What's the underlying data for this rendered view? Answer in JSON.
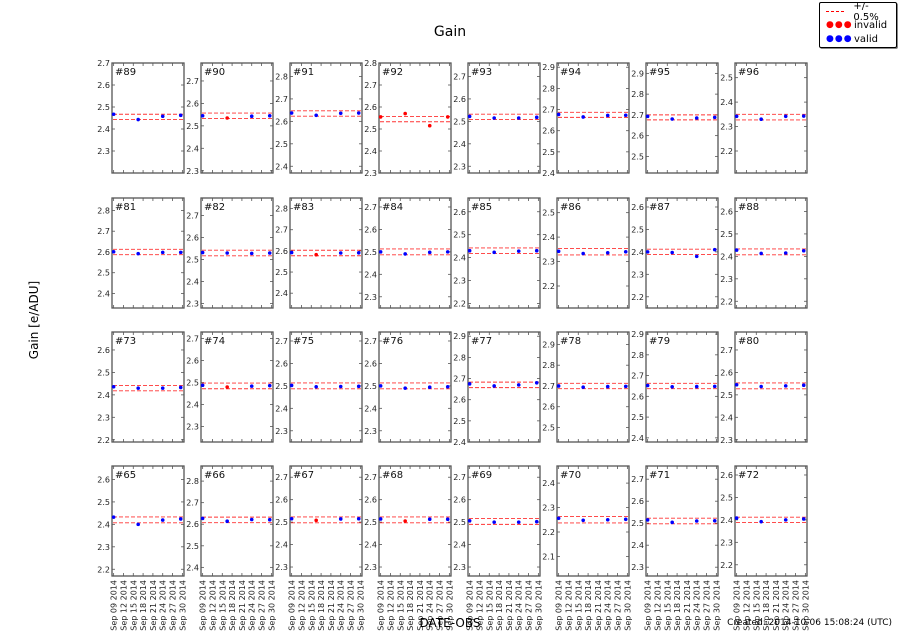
{
  "title": "Gain",
  "ylabel": "Gain [e/ADU]",
  "xlabel": "DATE-OBS",
  "footer": "Created: 2014-10-06 15:08:24 (UTC)",
  "legend": {
    "items": [
      {
        "label": "+/- 0.5%",
        "kind": "dashed",
        "color": "#ff0000"
      },
      {
        "label": "invalid",
        "kind": "dots",
        "color": "#ff0000"
      },
      {
        "label": "valid",
        "kind": "dots",
        "color": "#0000ff"
      }
    ]
  },
  "colors": {
    "valid": "#0000ff",
    "invalid": "#ff0000",
    "band": "#ff0000",
    "axes": "#555555"
  },
  "chart_data": {
    "type": "scatter",
    "title": "Gain",
    "xlabel": "DATE-OBS",
    "ylabel": "Gain [e/ADU]",
    "x_tick_labels": [
      "Sep 09 2014",
      "Sep 12 2014",
      "Sep 15 2014",
      "Sep 18 2014",
      "Sep 21 2014",
      "Sep 24 2014",
      "Sep 27 2014",
      "Sep 30 2014"
    ],
    "x_positions_days": [
      0,
      7.5,
      15,
      20.5
    ],
    "x_range_days": [
      -0.5,
      21.5
    ],
    "band": "+/- 0.5%",
    "legend_position": "upper right (outside)",
    "grid": false,
    "panels": [
      {
        "id": "#89",
        "ylim": [
          2.2,
          2.7
        ],
        "yticks": [
          2.3,
          2.4,
          2.5,
          2.6,
          2.7
        ],
        "band": [
          2.443,
          2.467
        ],
        "points": [
          [
            2.467,
            "valid"
          ],
          [
            2.443,
            "valid"
          ],
          [
            2.458,
            "valid"
          ],
          [
            2.462,
            "valid"
          ]
        ]
      },
      {
        "id": "#90",
        "ylim": [
          2.29,
          2.78
        ],
        "yticks": [
          2.3,
          2.4,
          2.5,
          2.6,
          2.7
        ],
        "band": [
          2.533,
          2.557
        ],
        "points": [
          [
            2.545,
            "valid"
          ],
          [
            2.535,
            "invalid"
          ],
          [
            2.543,
            "valid"
          ],
          [
            2.545,
            "valid"
          ]
        ]
      },
      {
        "id": "#91",
        "ylim": [
          2.37,
          2.86
        ],
        "yticks": [
          2.4,
          2.5,
          2.6,
          2.7,
          2.8
        ],
        "band": [
          2.623,
          2.647
        ],
        "points": [
          [
            2.637,
            "valid"
          ],
          [
            2.627,
            "valid"
          ],
          [
            2.636,
            "valid"
          ],
          [
            2.637,
            "valid"
          ]
        ]
      },
      {
        "id": "#92",
        "ylim": [
          2.3,
          2.8
        ],
        "yticks": [
          2.3,
          2.4,
          2.5,
          2.6,
          2.7,
          2.8
        ],
        "band": [
          2.533,
          2.557
        ],
        "points": [
          [
            2.555,
            "invalid"
          ],
          [
            2.57,
            "invalid"
          ],
          [
            2.515,
            "invalid"
          ],
          [
            2.555,
            "invalid"
          ]
        ]
      },
      {
        "id": "#93",
        "ylim": [
          2.27,
          2.76
        ],
        "yticks": [
          2.3,
          2.4,
          2.5,
          2.6,
          2.7
        ],
        "band": [
          2.508,
          2.532
        ],
        "points": [
          [
            2.522,
            "valid"
          ],
          [
            2.515,
            "valid"
          ],
          [
            2.515,
            "valid"
          ],
          [
            2.518,
            "valid"
          ]
        ]
      },
      {
        "id": "#94",
        "ylim": [
          2.4,
          2.92
        ],
        "yticks": [
          2.4,
          2.5,
          2.6,
          2.7,
          2.8,
          2.9
        ],
        "band": [
          2.663,
          2.687
        ],
        "points": [
          [
            2.677,
            "valid"
          ],
          [
            2.665,
            "valid"
          ],
          [
            2.672,
            "valid"
          ],
          [
            2.673,
            "valid"
          ]
        ]
      },
      {
        "id": "#95",
        "ylim": [
          2.42,
          2.95
        ],
        "yticks": [
          2.5,
          2.6,
          2.7,
          2.8,
          2.9
        ],
        "band": [
          2.676,
          2.7
        ],
        "points": [
          [
            2.693,
            "valid"
          ],
          [
            2.68,
            "valid"
          ],
          [
            2.685,
            "valid"
          ],
          [
            2.688,
            "valid"
          ]
        ]
      },
      {
        "id": "#96",
        "ylim": [
          2.11,
          2.56
        ],
        "yticks": [
          2.2,
          2.3,
          2.4,
          2.5
        ],
        "band": [
          2.327,
          2.35
        ],
        "points": [
          [
            2.342,
            "valid"
          ],
          [
            2.33,
            "valid"
          ],
          [
            2.342,
            "valid"
          ],
          [
            2.343,
            "valid"
          ]
        ]
      },
      {
        "id": "#81",
        "ylim": [
          2.33,
          2.86
        ],
        "yticks": [
          2.4,
          2.5,
          2.6,
          2.7,
          2.8
        ],
        "band": [
          2.587,
          2.613
        ],
        "points": [
          [
            2.601,
            "valid"
          ],
          [
            2.592,
            "valid"
          ],
          [
            2.598,
            "valid"
          ],
          [
            2.598,
            "valid"
          ]
        ]
      },
      {
        "id": "#82",
        "ylim": [
          2.28,
          2.78
        ],
        "yticks": [
          2.3,
          2.4,
          2.5,
          2.6,
          2.7
        ],
        "band": [
          2.517,
          2.543
        ],
        "points": [
          [
            2.532,
            "valid"
          ],
          [
            2.53,
            "valid"
          ],
          [
            2.528,
            "valid"
          ],
          [
            2.53,
            "valid"
          ]
        ]
      },
      {
        "id": "#83",
        "ylim": [
          2.33,
          2.85
        ],
        "yticks": [
          2.4,
          2.5,
          2.6,
          2.7,
          2.8
        ],
        "band": [
          2.577,
          2.603
        ],
        "points": [
          [
            2.592,
            "valid"
          ],
          [
            2.582,
            "invalid"
          ],
          [
            2.59,
            "valid"
          ],
          [
            2.591,
            "valid"
          ]
        ]
      },
      {
        "id": "#84",
        "ylim": [
          2.25,
          2.74
        ],
        "yticks": [
          2.3,
          2.4,
          2.5,
          2.6,
          2.7
        ],
        "band": [
          2.487,
          2.513
        ],
        "points": [
          [
            2.5,
            "valid"
          ],
          [
            2.491,
            "valid"
          ],
          [
            2.498,
            "valid"
          ],
          [
            2.5,
            "valid"
          ]
        ]
      },
      {
        "id": "#85",
        "ylim": [
          2.18,
          2.66
        ],
        "yticks": [
          2.2,
          2.3,
          2.4,
          2.5,
          2.6
        ],
        "band": [
          2.418,
          2.442
        ],
        "points": [
          [
            2.43,
            "valid"
          ],
          [
            2.423,
            "valid"
          ],
          [
            2.428,
            "valid"
          ],
          [
            2.43,
            "valid"
          ]
        ]
      },
      {
        "id": "#86",
        "ylim": [
          2.11,
          2.56
        ],
        "yticks": [
          2.2,
          2.3,
          2.4,
          2.5
        ],
        "band": [
          2.327,
          2.353
        ],
        "points": [
          [
            2.342,
            "valid"
          ],
          [
            2.333,
            "valid"
          ],
          [
            2.336,
            "valid"
          ],
          [
            2.34,
            "valid"
          ]
        ]
      },
      {
        "id": "#87",
        "ylim": [
          2.15,
          2.64
        ],
        "yticks": [
          2.2,
          2.3,
          2.4,
          2.5,
          2.6
        ],
        "band": [
          2.388,
          2.412
        ],
        "points": [
          [
            2.4,
            "valid"
          ],
          [
            2.397,
            "valid"
          ],
          [
            2.38,
            "valid"
          ],
          [
            2.41,
            "valid"
          ]
        ]
      },
      {
        "id": "#88",
        "ylim": [
          2.17,
          2.66
        ],
        "yticks": [
          2.2,
          2.3,
          2.4,
          2.5,
          2.6
        ],
        "band": [
          2.407,
          2.433
        ],
        "points": [
          [
            2.428,
            "valid"
          ],
          [
            2.413,
            "valid"
          ],
          [
            2.415,
            "valid"
          ],
          [
            2.425,
            "valid"
          ]
        ]
      },
      {
        "id": "#73",
        "ylim": [
          2.19,
          2.68
        ],
        "yticks": [
          2.2,
          2.3,
          2.4,
          2.5,
          2.6
        ],
        "band": [
          2.418,
          2.442
        ],
        "points": [
          [
            2.436,
            "valid"
          ],
          [
            2.43,
            "valid"
          ],
          [
            2.43,
            "valid"
          ],
          [
            2.433,
            "valid"
          ]
        ]
      },
      {
        "id": "#74",
        "ylim": [
          2.23,
          2.73
        ],
        "yticks": [
          2.3,
          2.4,
          2.5,
          2.6,
          2.7
        ],
        "band": [
          2.472,
          2.498
        ],
        "points": [
          [
            2.488,
            "valid"
          ],
          [
            2.48,
            "invalid"
          ],
          [
            2.484,
            "valid"
          ],
          [
            2.486,
            "valid"
          ]
        ]
      },
      {
        "id": "#75",
        "ylim": [
          2.25,
          2.74
        ],
        "yticks": [
          2.3,
          2.4,
          2.5,
          2.6,
          2.7
        ],
        "band": [
          2.487,
          2.513
        ],
        "points": [
          [
            2.502,
            "valid"
          ],
          [
            2.496,
            "valid"
          ],
          [
            2.497,
            "valid"
          ],
          [
            2.498,
            "valid"
          ]
        ]
      },
      {
        "id": "#76",
        "ylim": [
          2.25,
          2.74
        ],
        "yticks": [
          2.3,
          2.4,
          2.5,
          2.6,
          2.7
        ],
        "band": [
          2.487,
          2.513
        ],
        "points": [
          [
            2.5,
            "valid"
          ],
          [
            2.49,
            "valid"
          ],
          [
            2.494,
            "valid"
          ],
          [
            2.496,
            "valid"
          ]
        ]
      },
      {
        "id": "#77",
        "ylim": [
          2.4,
          2.92
        ],
        "yticks": [
          2.4,
          2.5,
          2.6,
          2.7,
          2.8,
          2.9
        ],
        "band": [
          2.657,
          2.683
        ],
        "points": [
          [
            2.675,
            "valid"
          ],
          [
            2.665,
            "valid"
          ],
          [
            2.67,
            "valid"
          ],
          [
            2.68,
            "valid"
          ]
        ]
      },
      {
        "id": "#78",
        "ylim": [
          2.43,
          2.96
        ],
        "yticks": [
          2.5,
          2.6,
          2.7,
          2.8,
          2.9
        ],
        "band": [
          2.687,
          2.713
        ],
        "points": [
          [
            2.7,
            "valid"
          ],
          [
            2.694,
            "valid"
          ],
          [
            2.697,
            "valid"
          ],
          [
            2.698,
            "valid"
          ]
        ]
      },
      {
        "id": "#79",
        "ylim": [
          2.38,
          2.91
        ],
        "yticks": [
          2.4,
          2.5,
          2.6,
          2.7,
          2.8,
          2.9
        ],
        "band": [
          2.637,
          2.663
        ],
        "points": [
          [
            2.652,
            "valid"
          ],
          [
            2.646,
            "valid"
          ],
          [
            2.647,
            "valid"
          ],
          [
            2.648,
            "valid"
          ]
        ]
      },
      {
        "id": "#80",
        "ylim": [
          2.29,
          2.78
        ],
        "yticks": [
          2.3,
          2.4,
          2.5,
          2.6,
          2.7
        ],
        "band": [
          2.527,
          2.553
        ],
        "points": [
          [
            2.545,
            "valid"
          ],
          [
            2.537,
            "valid"
          ],
          [
            2.54,
            "valid"
          ],
          [
            2.543,
            "valid"
          ]
        ]
      },
      {
        "id": "#65",
        "ylim": [
          2.17,
          2.66
        ],
        "yticks": [
          2.2,
          2.3,
          2.4,
          2.5,
          2.6
        ],
        "band": [
          2.407,
          2.433
        ],
        "points": [
          [
            2.432,
            "valid"
          ],
          [
            2.4,
            "valid"
          ],
          [
            2.419,
            "valid"
          ],
          [
            2.424,
            "valid"
          ]
        ]
      },
      {
        "id": "#66",
        "ylim": [
          2.36,
          2.87
        ],
        "yticks": [
          2.4,
          2.5,
          2.6,
          2.7,
          2.8
        ],
        "band": [
          2.607,
          2.633
        ],
        "points": [
          [
            2.627,
            "valid"
          ],
          [
            2.614,
            "valid"
          ],
          [
            2.622,
            "valid"
          ],
          [
            2.621,
            "valid"
          ]
        ]
      },
      {
        "id": "#67",
        "ylim": [
          2.26,
          2.75
        ],
        "yticks": [
          2.3,
          2.4,
          2.5,
          2.6,
          2.7
        ],
        "band": [
          2.497,
          2.523
        ],
        "points": [
          [
            2.515,
            "valid"
          ],
          [
            2.508,
            "invalid"
          ],
          [
            2.514,
            "valid"
          ],
          [
            2.515,
            "valid"
          ]
        ]
      },
      {
        "id": "#68",
        "ylim": [
          2.26,
          2.75
        ],
        "yticks": [
          2.3,
          2.4,
          2.5,
          2.6,
          2.7
        ],
        "band": [
          2.497,
          2.523
        ],
        "points": [
          [
            2.514,
            "valid"
          ],
          [
            2.505,
            "invalid"
          ],
          [
            2.513,
            "valid"
          ],
          [
            2.513,
            "valid"
          ]
        ]
      },
      {
        "id": "#69",
        "ylim": [
          2.26,
          2.75
        ],
        "yticks": [
          2.3,
          2.4,
          2.5,
          2.6,
          2.7
        ],
        "band": [
          2.49,
          2.516
        ],
        "points": [
          [
            2.506,
            "valid"
          ],
          [
            2.5,
            "valid"
          ],
          [
            2.5,
            "valid"
          ],
          [
            2.502,
            "valid"
          ]
        ]
      },
      {
        "id": "#70",
        "ylim": [
          2.02,
          2.47
        ],
        "yticks": [
          2.1,
          2.2,
          2.3,
          2.4
        ],
        "band": [
          2.237,
          2.263
        ],
        "points": [
          [
            2.256,
            "valid"
          ],
          [
            2.248,
            "valid"
          ],
          [
            2.25,
            "valid"
          ],
          [
            2.252,
            "valid"
          ]
        ]
      },
      {
        "id": "#71",
        "ylim": [
          2.26,
          2.76
        ],
        "yticks": [
          2.3,
          2.4,
          2.5,
          2.6,
          2.7
        ],
        "band": [
          2.497,
          2.523
        ],
        "points": [
          [
            2.515,
            "valid"
          ],
          [
            2.504,
            "valid"
          ],
          [
            2.51,
            "valid"
          ],
          [
            2.511,
            "valid"
          ]
        ]
      },
      {
        "id": "#72",
        "ylim": [
          2.15,
          2.64
        ],
        "yticks": [
          2.2,
          2.3,
          2.4,
          2.5,
          2.6
        ],
        "band": [
          2.388,
          2.412
        ],
        "points": [
          [
            2.408,
            "valid"
          ],
          [
            2.392,
            "valid"
          ],
          [
            2.4,
            "valid"
          ],
          [
            2.404,
            "valid"
          ]
        ]
      }
    ]
  }
}
